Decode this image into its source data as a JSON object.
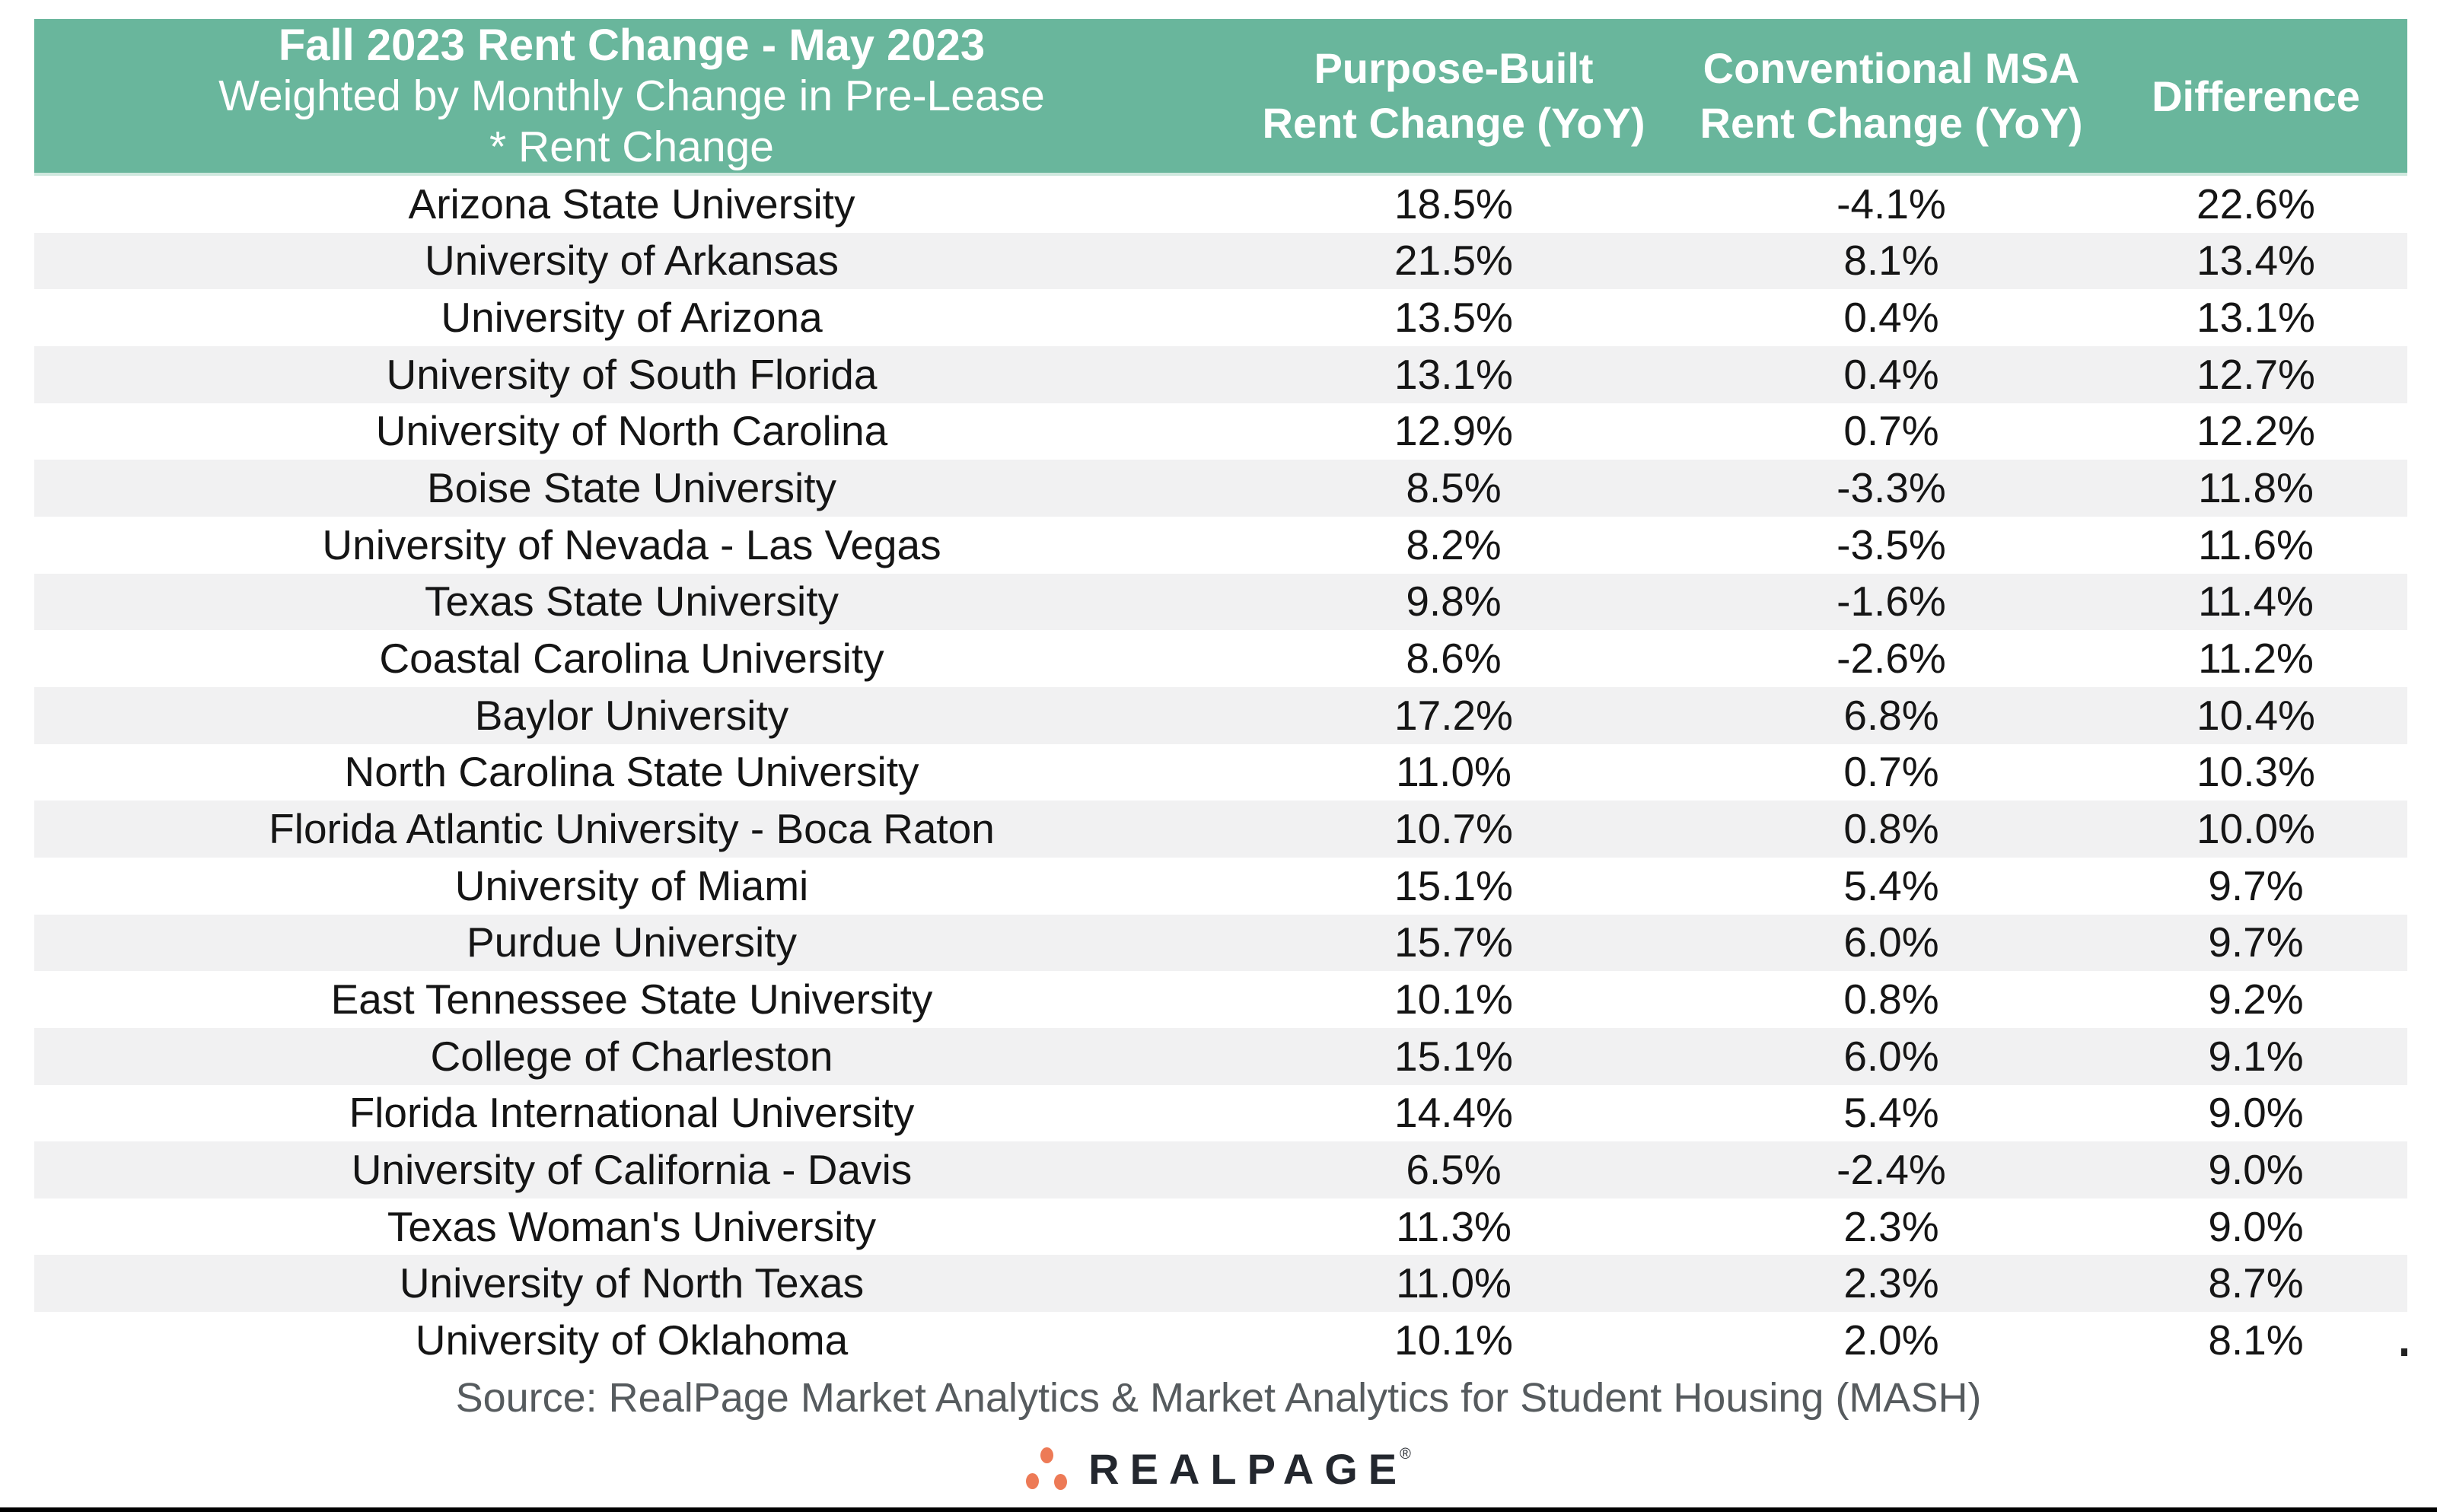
{
  "table": {
    "header": {
      "title_line1": "Fall 2023 Rent Change - May 2023",
      "title_line2": "Weighted by Monthly Change in Pre-Lease",
      "title_line3": "* Rent Change",
      "col1_line1": "Purpose-Built",
      "col1_line2": "Rent Change (YoY)",
      "col2_line1": "Conventional MSA",
      "col2_line2": "Rent Change (YoY)",
      "col3": "Difference"
    }
  },
  "chart_data": {
    "type": "table",
    "title": "Fall 2023 Rent Change - May 2023",
    "subtitle": "Weighted by Monthly Change in Pre-Lease",
    "subtitle2": "* Rent Change",
    "columns": [
      "",
      "Purpose-Built Rent Change (YoY)",
      "Conventional MSA Rent Change (YoY)",
      "Difference"
    ],
    "rows": [
      {
        "name": "Arizona State University",
        "purpose_built": "18.5%",
        "conventional_msa": "-4.1%",
        "difference": "22.6%"
      },
      {
        "name": "University of Arkansas",
        "purpose_built": "21.5%",
        "conventional_msa": "8.1%",
        "difference": "13.4%"
      },
      {
        "name": "University of Arizona",
        "purpose_built": "13.5%",
        "conventional_msa": "0.4%",
        "difference": "13.1%"
      },
      {
        "name": "University of South Florida",
        "purpose_built": "13.1%",
        "conventional_msa": "0.4%",
        "difference": "12.7%"
      },
      {
        "name": "University of North Carolina",
        "purpose_built": "12.9%",
        "conventional_msa": "0.7%",
        "difference": "12.2%"
      },
      {
        "name": "Boise State University",
        "purpose_built": "8.5%",
        "conventional_msa": "-3.3%",
        "difference": "11.8%"
      },
      {
        "name": "University of Nevada - Las Vegas",
        "purpose_built": "8.2%",
        "conventional_msa": "-3.5%",
        "difference": "11.6%"
      },
      {
        "name": "Texas State University",
        "purpose_built": "9.8%",
        "conventional_msa": "-1.6%",
        "difference": "11.4%"
      },
      {
        "name": "Coastal Carolina University",
        "purpose_built": "8.6%",
        "conventional_msa": "-2.6%",
        "difference": "11.2%"
      },
      {
        "name": "Baylor University",
        "purpose_built": "17.2%",
        "conventional_msa": "6.8%",
        "difference": "10.4%"
      },
      {
        "name": "North Carolina State University",
        "purpose_built": "11.0%",
        "conventional_msa": "0.7%",
        "difference": "10.3%"
      },
      {
        "name": "Florida Atlantic University - Boca Raton",
        "purpose_built": "10.7%",
        "conventional_msa": "0.8%",
        "difference": "10.0%"
      },
      {
        "name": "University of Miami",
        "purpose_built": "15.1%",
        "conventional_msa": "5.4%",
        "difference": "9.7%"
      },
      {
        "name": "Purdue University",
        "purpose_built": "15.7%",
        "conventional_msa": "6.0%",
        "difference": "9.7%"
      },
      {
        "name": "East Tennessee State University",
        "purpose_built": "10.1%",
        "conventional_msa": "0.8%",
        "difference": "9.2%"
      },
      {
        "name": "College of Charleston",
        "purpose_built": "15.1%",
        "conventional_msa": "6.0%",
        "difference": "9.1%"
      },
      {
        "name": "Florida International University",
        "purpose_built": "14.4%",
        "conventional_msa": "5.4%",
        "difference": "9.0%"
      },
      {
        "name": "University of California - Davis",
        "purpose_built": "6.5%",
        "conventional_msa": "-2.4%",
        "difference": "9.0%"
      },
      {
        "name": "Texas Woman's University",
        "purpose_built": "11.3%",
        "conventional_msa": "2.3%",
        "difference": "9.0%"
      },
      {
        "name": "University of North Texas",
        "purpose_built": "11.0%",
        "conventional_msa": "2.3%",
        "difference": "8.7%"
      },
      {
        "name": "University of Oklahoma",
        "purpose_built": "10.1%",
        "conventional_msa": "2.0%",
        "difference": "8.1%"
      }
    ],
    "source": "Source: RealPage Market Analytics & Market Analytics for Student Housing (MASH)",
    "legend_position": "none",
    "grid": false
  },
  "footer": {
    "logo_text": "REALPAGE",
    "registered_mark": "®"
  },
  "colors": {
    "header_green": "#69B69C",
    "row_alt_gray": "#F1F1F2",
    "row_text": "#151515",
    "source_gray": "#565B5E",
    "logo_orange": "#ED7A56",
    "logo_dark": "#23272E",
    "bottom_line": "#000000"
  }
}
